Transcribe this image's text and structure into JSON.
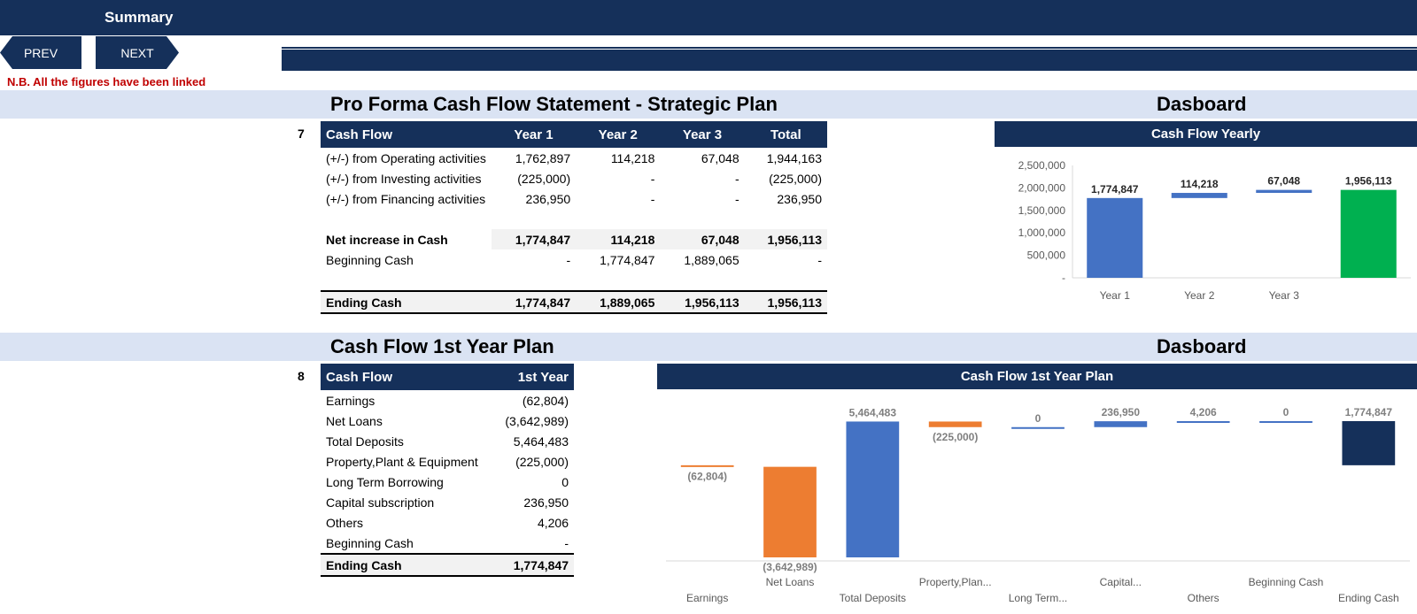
{
  "header": {
    "title": "Summary",
    "prev_label": "PREV",
    "next_label": "NEXT"
  },
  "note": "N.B. All the figures have been linked",
  "section1": {
    "number": "7",
    "title": "Pro Forma Cash Flow Statement - Strategic Plan",
    "dashboard_title": "Dasboard",
    "table": {
      "headers": [
        "Cash Flow",
        "Year 1",
        "Year 2",
        "Year 3",
        "Total"
      ],
      "rows": [
        {
          "label": "(+/-) from Operating activities",
          "values": [
            "1,762,897",
            "114,218",
            "67,048",
            "1,944,163"
          ]
        },
        {
          "label": "(+/-) from Investing activities",
          "values": [
            "(225,000)",
            "-",
            "-",
            "(225,000)"
          ]
        },
        {
          "label": "(+/-) from Financing activities",
          "values": [
            "236,950",
            "-",
            "-",
            "236,950"
          ]
        },
        {
          "label": "Net increase in Cash",
          "values": [
            "1,774,847",
            "114,218",
            "67,048",
            "1,956,113"
          ]
        },
        {
          "label": "Beginning Cash",
          "values": [
            "-",
            "1,774,847",
            "1,889,065",
            "-"
          ]
        },
        {
          "label": "Ending Cash",
          "values": [
            "1,774,847",
            "1,889,065",
            "1,956,113",
            "1,956,113"
          ]
        }
      ]
    }
  },
  "section2": {
    "number": "8",
    "title": "Cash Flow  1st Year Plan",
    "dashboard_title": "Dasboard",
    "table": {
      "headers": [
        "Cash Flow",
        "1st Year"
      ],
      "rows": [
        {
          "label": "Earnings",
          "value": "(62,804)"
        },
        {
          "label": "Net Loans",
          "value": "(3,642,989)"
        },
        {
          "label": "Total Deposits",
          "value": "5,464,483"
        },
        {
          "label": "Property,Plant & Equipment",
          "value": "(225,000)"
        },
        {
          "label": "Long Term Borrowing",
          "value": "0"
        },
        {
          "label": "Capital subscription",
          "value": "236,950"
        },
        {
          "label": "Others",
          "value": "4,206"
        },
        {
          "label": "Beginning Cash",
          "value": "-"
        },
        {
          "label": "Ending Cash",
          "value": "1,774,847"
        }
      ]
    }
  },
  "chart_data": [
    {
      "type": "bar",
      "title": "Cash Flow Yearly",
      "categories": [
        "Year 1",
        "Year 2",
        "Year 3",
        ""
      ],
      "values": [
        1774847,
        114218,
        67048,
        1956113
      ],
      "data_labels": [
        "1,774,847",
        "114,218",
        "67,048",
        "1,956,113"
      ],
      "y_ticks": [
        "-",
        "500,000",
        "1,000,000",
        "1,500,000",
        "2,000,000",
        "2,500,000"
      ],
      "ylim": [
        0,
        2500000
      ],
      "colors": [
        "#4472c4",
        "#4472c4",
        "#4472c4",
        "#00b050"
      ],
      "grid": false
    },
    {
      "type": "bar",
      "title": "Cash Flow 1st Year Plan",
      "categories": [
        "Earnings",
        "Net Loans",
        "Total Deposits",
        "Property,Plan...",
        "Long Term...",
        "Capital...",
        "Others",
        "Beginning Cash",
        "Ending Cash"
      ],
      "values": [
        -62804,
        -3642989,
        5464483,
        -225000,
        0,
        236950,
        4206,
        0,
        1774847
      ],
      "data_labels": [
        "(62,804)",
        "(3,642,989)",
        "5,464,483",
        "(225,000)",
        "0",
        "236,950",
        "4,206",
        "0",
        "1,774,847"
      ],
      "colors": [
        "#ed7d31",
        "#ed7d31",
        "#4472c4",
        "#ed7d31",
        "#4472c4",
        "#4472c4",
        "#4472c4",
        "#4472c4",
        "#15305a"
      ],
      "grid": false
    }
  ]
}
